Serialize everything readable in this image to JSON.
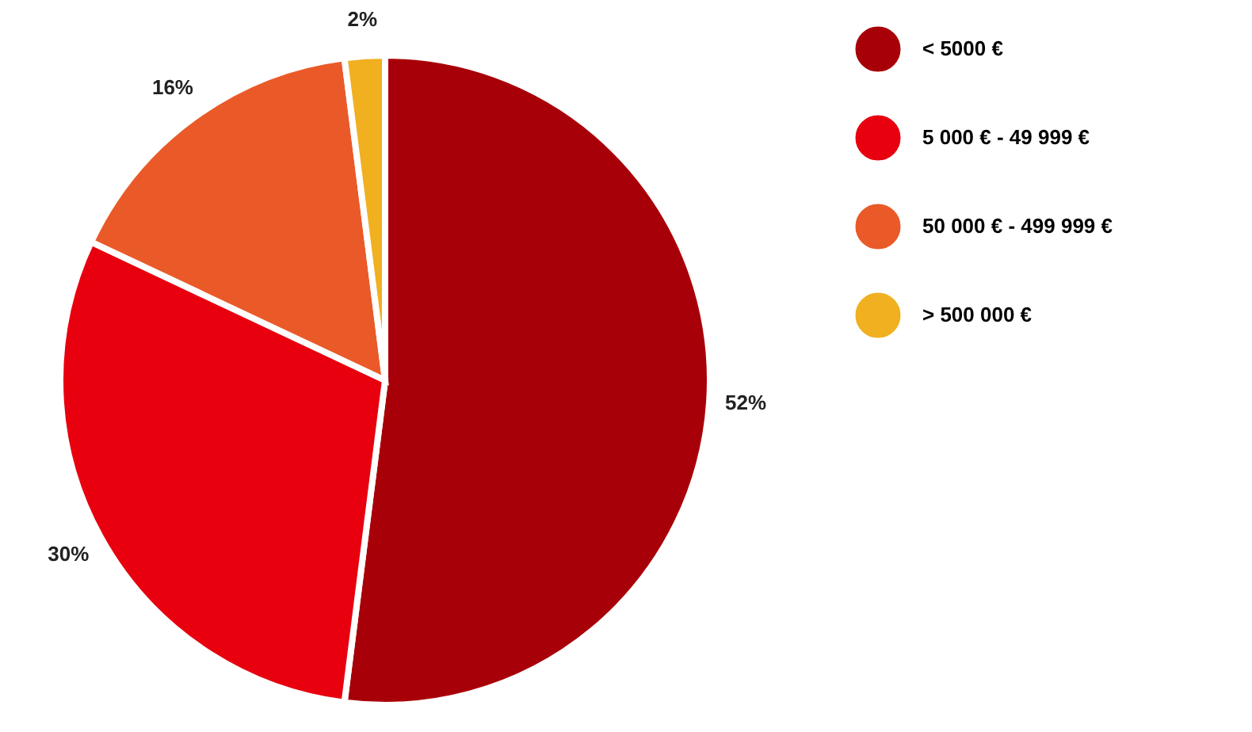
{
  "chart_data": {
    "type": "pie",
    "categories": [
      "< 5000 €",
      "5 000 € - 49 999 €",
      "50 000 € - 499 999 €",
      "> 500 000 €"
    ],
    "values": [
      52,
      30,
      16,
      2
    ],
    "colors": [
      "#a80008",
      "#e8000f",
      "#ea5a28",
      "#f0b020"
    ],
    "value_labels": [
      "52%",
      "30%",
      "16%",
      "2%"
    ],
    "legend": "right"
  }
}
